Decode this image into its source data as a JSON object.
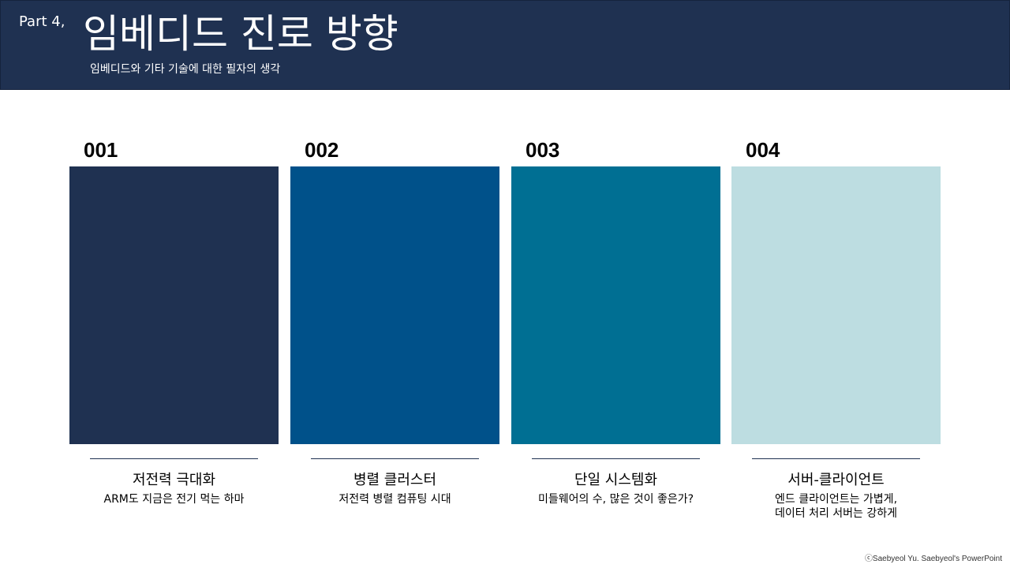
{
  "header": {
    "part_label": "Part 4,",
    "title": "임베디드 진로 방향",
    "subtitle": "임베디드와 기타 기술에 대한 필자의 생각"
  },
  "cards": [
    {
      "number": "001",
      "color": "#1f3151",
      "title": "저전력 극대화",
      "description": "ARM도 지금은 전기 먹는 하마"
    },
    {
      "number": "002",
      "color": "#00518a",
      "title": "병렬 클러스터",
      "description": "저전력 병렬 컴퓨팅 시대"
    },
    {
      "number": "003",
      "color": "#006f93",
      "title": "단일 시스템화",
      "description": "미들웨어의 수, 많은 것이 좋은가?"
    },
    {
      "number": "004",
      "color": "#bddde1",
      "title": "서버-클라이언트",
      "description": "엔드 클라이언트는 가볍게,\n데이터 처리 서버는 강하게"
    }
  ],
  "footer": {
    "copyright": "ⓒSaebyeol Yu. Saebyeol's PowerPoint"
  }
}
